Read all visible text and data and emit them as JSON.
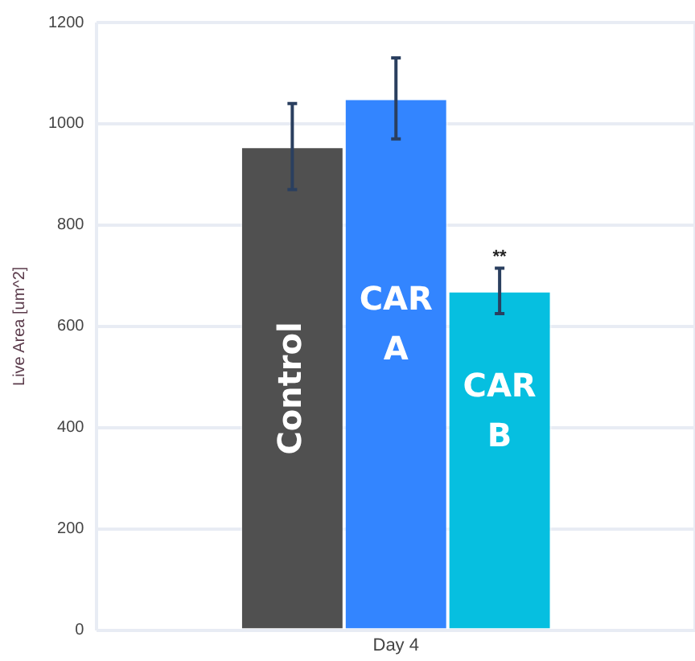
{
  "chart_data": {
    "type": "bar",
    "ylabel": "Live Area [um^2]",
    "categories": [
      "Day 4"
    ],
    "series": [
      {
        "name": "Control",
        "color": "#505050",
        "values": [
          955
        ],
        "errors": [
          85
        ]
      },
      {
        "name": "CAR A",
        "color": "#3385ff",
        "values": [
          1050
        ],
        "errors": [
          80
        ]
      },
      {
        "name": "CAR B",
        "color": "#06bfe0",
        "values": [
          670
        ],
        "errors": [
          45
        ]
      }
    ],
    "ylim": [
      0,
      1200
    ],
    "yticks": [
      0,
      200,
      400,
      600,
      800,
      1000,
      1200
    ],
    "grid": true,
    "annotations": [
      "**"
    ]
  }
}
